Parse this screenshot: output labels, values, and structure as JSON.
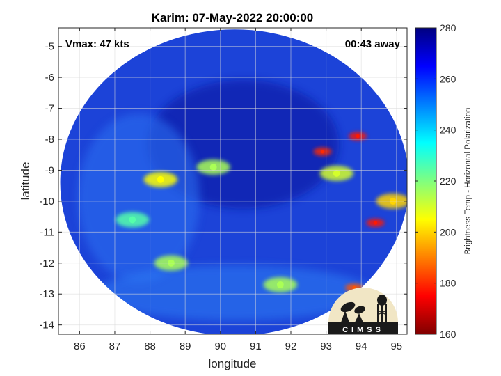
{
  "chart_data": {
    "type": "heatmap",
    "title": "Karim: 07-May-2022 20:00:00",
    "xlabel": "longitude",
    "ylabel": "latitude",
    "xlim": [
      85.4,
      95.3
    ],
    "ylim": [
      -14.3,
      -4.4
    ],
    "y_direction": "reversed",
    "x_ticks": [
      86,
      87,
      88,
      89,
      90,
      91,
      92,
      93,
      94,
      95
    ],
    "y_ticks": [
      -5,
      -6,
      -7,
      -8,
      -9,
      -10,
      -11,
      -12,
      -13,
      -14
    ],
    "grid": true,
    "annotations": {
      "vmax": "Vmax: 47 kts",
      "time_offset": "00:43 away"
    },
    "colorbar": {
      "label": "Brightness Temp - Horizontal Polarization",
      "min": 160,
      "max": 280,
      "ticks": [
        280,
        260,
        240,
        220,
        200,
        180,
        160
      ],
      "colormap": "jet"
    },
    "swath": {
      "center": [
        90.4,
        -9.4
      ],
      "radius_deg_lon": 4.95,
      "radius_deg_lat": 4.95
    },
    "features": [
      {
        "lon": 88.3,
        "lat": -9.3,
        "value": 205
      },
      {
        "lon": 89.8,
        "lat": -8.9,
        "value": 215
      },
      {
        "lon": 87.5,
        "lat": -10.6,
        "value": 225
      },
      {
        "lon": 88.6,
        "lat": -12.0,
        "value": 215
      },
      {
        "lon": 91.7,
        "lat": -12.7,
        "value": 215
      },
      {
        "lon": 93.8,
        "lat": -12.8,
        "value": 185
      },
      {
        "lon": 94.4,
        "lat": -10.7,
        "value": 178
      },
      {
        "lon": 93.9,
        "lat": -7.9,
        "value": 178
      },
      {
        "lon": 92.9,
        "lat": -8.4,
        "value": 180
      },
      {
        "lon": 93.3,
        "lat": -9.1,
        "value": 210
      },
      {
        "lon": 94.9,
        "lat": -10.0,
        "value": 200
      }
    ]
  },
  "logo": {
    "text": "CIMSS"
  }
}
